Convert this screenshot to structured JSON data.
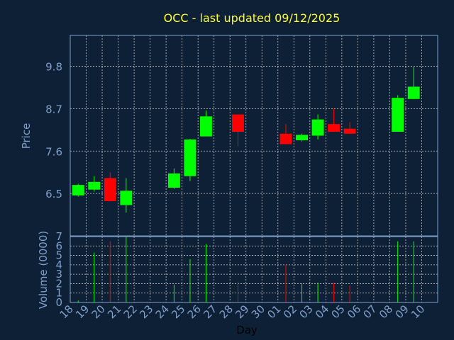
{
  "colors": {
    "background": "#0e2035",
    "title": "#ffff33",
    "axis_text": "#7f9fcc",
    "xlabel_text": "#000000",
    "grid": "#c8c8c8",
    "frame": "#7f9fcc",
    "up": "#00ff00",
    "down": "#ff0000"
  },
  "chart_data": [
    {
      "type": "candlestick",
      "title": "OCC - last updated 09/12/2025",
      "ylabel": "Price",
      "yticks": [
        "6.5",
        "7.6",
        "8.7",
        "9.8"
      ],
      "ylim": [
        5.4,
        10.6
      ],
      "grid": true,
      "categories": [
        "18",
        "19",
        "20",
        "21",
        "22",
        "23",
        "24",
        "25",
        "26",
        "27",
        "28",
        "29",
        "30",
        "01",
        "02",
        "03",
        "04",
        "05",
        "06",
        "07",
        "08",
        "09",
        "10"
      ],
      "candles": [
        {
          "x": "18",
          "open": 6.45,
          "close": 6.72,
          "high": 6.75,
          "low": 6.42
        },
        {
          "x": "19",
          "open": 6.6,
          "close": 6.8,
          "high": 6.95,
          "low": 6.55
        },
        {
          "x": "20",
          "open": 6.9,
          "close": 6.3,
          "high": 7.05,
          "low": 6.3
        },
        {
          "x": "21",
          "open": 6.2,
          "close": 6.57,
          "high": 6.9,
          "low": 6.0
        },
        {
          "x": "24",
          "open": 6.65,
          "close": 7.02,
          "high": 7.15,
          "low": 6.62
        },
        {
          "x": "25",
          "open": 6.95,
          "close": 7.9,
          "high": 7.92,
          "low": 6.82
        },
        {
          "x": "26",
          "open": 7.98,
          "close": 8.5,
          "high": 8.65,
          "low": 7.98
        },
        {
          "x": "28",
          "open": 8.55,
          "close": 8.1,
          "high": 8.55,
          "low": 7.72
        },
        {
          "x": "01",
          "open": 8.05,
          "close": 7.78,
          "high": 8.3,
          "low": 7.78
        },
        {
          "x": "02",
          "open": 7.88,
          "close": 8.02,
          "high": 8.05,
          "low": 7.85
        },
        {
          "x": "03",
          "open": 8.0,
          "close": 8.42,
          "high": 8.55,
          "low": 7.9
        },
        {
          "x": "04",
          "open": 8.3,
          "close": 8.1,
          "high": 8.7,
          "low": 8.1
        },
        {
          "x": "05",
          "open": 8.18,
          "close": 8.05,
          "high": 8.35,
          "low": 8.05
        },
        {
          "x": "08",
          "open": 8.1,
          "close": 8.98,
          "high": 9.05,
          "low": 8.1
        },
        {
          "x": "09",
          "open": 8.95,
          "close": 9.27,
          "high": 9.78,
          "low": 8.95
        }
      ]
    },
    {
      "type": "bar",
      "ylabel": "Volume (0000)",
      "xlabel": "Day",
      "yticks": [
        "0",
        "1",
        "2",
        "3",
        "4",
        "5",
        "6",
        "7"
      ],
      "ylim": [
        0,
        7
      ],
      "grid": true,
      "categories": [
        "18",
        "19",
        "20",
        "21",
        "22",
        "23",
        "24",
        "25",
        "26",
        "27",
        "28",
        "29",
        "30",
        "01",
        "02",
        "03",
        "04",
        "05",
        "06",
        "07",
        "08",
        "09",
        "10"
      ],
      "bars": [
        {
          "x": "18",
          "value": 0.2,
          "dir": "up"
        },
        {
          "x": "19",
          "value": 5.3,
          "dir": "up"
        },
        {
          "x": "20",
          "value": 6.5,
          "dir": "down"
        },
        {
          "x": "21",
          "value": 7.0,
          "dir": "up"
        },
        {
          "x": "24",
          "value": 1.9,
          "dir": "up"
        },
        {
          "x": "25",
          "value": 4.6,
          "dir": "up"
        },
        {
          "x": "26",
          "value": 6.2,
          "dir": "up"
        },
        {
          "x": "28",
          "value": 2.2,
          "dir": "down"
        },
        {
          "x": "01",
          "value": 4.0,
          "dir": "down"
        },
        {
          "x": "02",
          "value": 2.0,
          "dir": "up"
        },
        {
          "x": "03",
          "value": 2.1,
          "dir": "up"
        },
        {
          "x": "04",
          "value": 2.1,
          "dir": "down"
        },
        {
          "x": "05",
          "value": 1.8,
          "dir": "down"
        },
        {
          "x": "08",
          "value": 6.5,
          "dir": "up"
        },
        {
          "x": "09",
          "value": 6.5,
          "dir": "up"
        }
      ]
    }
  ]
}
